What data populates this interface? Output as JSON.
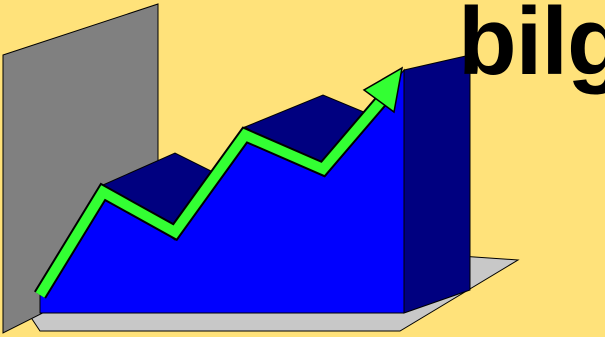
{
  "slide": {
    "title_text": "bilg"
  },
  "illustration": {
    "subject": "growth-chart-clipart",
    "colors": {
      "background": "#FFE27A",
      "back_wall": "#808080",
      "floor": "#C8C8C8",
      "front_face": "#0000FF",
      "top_faces": "#000080",
      "side_face": "#000080",
      "arrow": "#33FF33",
      "outline": "#000000"
    }
  }
}
